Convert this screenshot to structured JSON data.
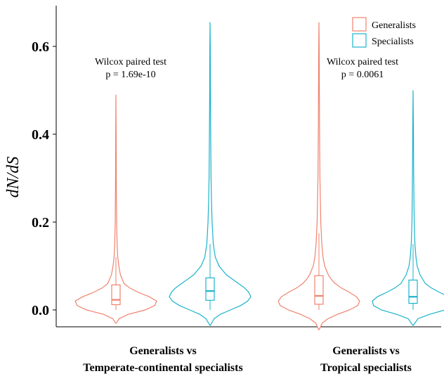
{
  "chart_data": {
    "type": "violin",
    "ylabel": "dN/dS",
    "ylim": [
      -0.035,
      0.675
    ],
    "yticks": [
      0.0,
      0.2,
      0.4,
      0.6
    ],
    "ytick_labels": [
      "0.0",
      "0.2",
      "0.4",
      "0.6"
    ],
    "groups": [
      {
        "label_line1": "Generalists vs",
        "label_line2": "Temperate-continental specialists"
      },
      {
        "label_line1": "Generalists vs",
        "label_line2": "Tropical specialists"
      }
    ],
    "annotations": [
      {
        "line1": "Wilcox paired test",
        "line2": "p = 1.69e-10"
      },
      {
        "line1": "Wilcox paired test",
        "line2": "p = 0.0061"
      }
    ],
    "legend": {
      "position": "top-right",
      "entries": [
        {
          "name": "Generalists",
          "color": "#F0826E"
        },
        {
          "name": "Specialists",
          "color": "#1BB3CC"
        }
      ]
    },
    "violins": [
      {
        "group": 0,
        "series": "Generalists",
        "min": -0.03,
        "max": 0.49,
        "box": {
          "q1": 0.012,
          "median": 0.023,
          "q3": 0.057,
          "wlow": 0.0,
          "whigh": 0.12
        },
        "profile": [
          [
            -0.03,
            0.005
          ],
          [
            -0.02,
            0.08
          ],
          [
            -0.01,
            0.3
          ],
          [
            0.0,
            0.72
          ],
          [
            0.01,
            0.95
          ],
          [
            0.02,
            1.0
          ],
          [
            0.03,
            0.82
          ],
          [
            0.04,
            0.55
          ],
          [
            0.05,
            0.34
          ],
          [
            0.06,
            0.2
          ],
          [
            0.08,
            0.11
          ],
          [
            0.1,
            0.07
          ],
          [
            0.12,
            0.045
          ],
          [
            0.15,
            0.03
          ],
          [
            0.2,
            0.018
          ],
          [
            0.3,
            0.009
          ],
          [
            0.4,
            0.005
          ],
          [
            0.49,
            0.0
          ]
        ]
      },
      {
        "group": 0,
        "series": "Specialists",
        "min": -0.035,
        "max": 0.655,
        "box": {
          "q1": 0.022,
          "median": 0.043,
          "q3": 0.073,
          "wlow": 0.0,
          "whigh": 0.15
        },
        "profile": [
          [
            -0.035,
            0.005
          ],
          [
            -0.02,
            0.1
          ],
          [
            -0.01,
            0.25
          ],
          [
            0.0,
            0.5
          ],
          [
            0.01,
            0.75
          ],
          [
            0.02,
            0.92
          ],
          [
            0.03,
            1.0
          ],
          [
            0.04,
            0.95
          ],
          [
            0.05,
            0.85
          ],
          [
            0.06,
            0.7
          ],
          [
            0.07,
            0.55
          ],
          [
            0.08,
            0.4
          ],
          [
            0.1,
            0.22
          ],
          [
            0.12,
            0.13
          ],
          [
            0.15,
            0.08
          ],
          [
            0.2,
            0.05
          ],
          [
            0.25,
            0.035
          ],
          [
            0.3,
            0.025
          ],
          [
            0.4,
            0.015
          ],
          [
            0.5,
            0.009
          ],
          [
            0.6,
            0.006
          ],
          [
            0.655,
            0.0
          ]
        ]
      },
      {
        "group": 1,
        "series": "Generalists",
        "min": -0.045,
        "max": 0.655,
        "box": {
          "q1": 0.013,
          "median": 0.032,
          "q3": 0.078,
          "wlow": 0.0,
          "whigh": 0.175
        },
        "profile": [
          [
            -0.045,
            0.005
          ],
          [
            -0.03,
            0.08
          ],
          [
            -0.02,
            0.22
          ],
          [
            -0.01,
            0.45
          ],
          [
            0.0,
            0.75
          ],
          [
            0.01,
            0.95
          ],
          [
            0.02,
            1.0
          ],
          [
            0.03,
            0.92
          ],
          [
            0.04,
            0.75
          ],
          [
            0.05,
            0.55
          ],
          [
            0.06,
            0.4
          ],
          [
            0.07,
            0.3
          ],
          [
            0.08,
            0.23
          ],
          [
            0.1,
            0.14
          ],
          [
            0.12,
            0.1
          ],
          [
            0.15,
            0.07
          ],
          [
            0.2,
            0.045
          ],
          [
            0.3,
            0.025
          ],
          [
            0.4,
            0.015
          ],
          [
            0.5,
            0.01
          ],
          [
            0.6,
            0.006
          ],
          [
            0.655,
            0.0
          ]
        ]
      },
      {
        "group": 1,
        "series": "Specialists",
        "min": -0.035,
        "max": 0.5,
        "box": {
          "q1": 0.015,
          "median": 0.03,
          "q3": 0.068,
          "wlow": 0.0,
          "whigh": 0.15
        },
        "profile": [
          [
            -0.035,
            0.005
          ],
          [
            -0.02,
            0.12
          ],
          [
            -0.01,
            0.4
          ],
          [
            0.0,
            0.78
          ],
          [
            0.01,
            0.97
          ],
          [
            0.02,
            1.0
          ],
          [
            0.03,
            0.88
          ],
          [
            0.04,
            0.65
          ],
          [
            0.05,
            0.45
          ],
          [
            0.06,
            0.3
          ],
          [
            0.08,
            0.17
          ],
          [
            0.1,
            0.1
          ],
          [
            0.12,
            0.07
          ],
          [
            0.15,
            0.045
          ],
          [
            0.2,
            0.028
          ],
          [
            0.3,
            0.015
          ],
          [
            0.4,
            0.008
          ],
          [
            0.5,
            0.0
          ]
        ]
      }
    ]
  }
}
